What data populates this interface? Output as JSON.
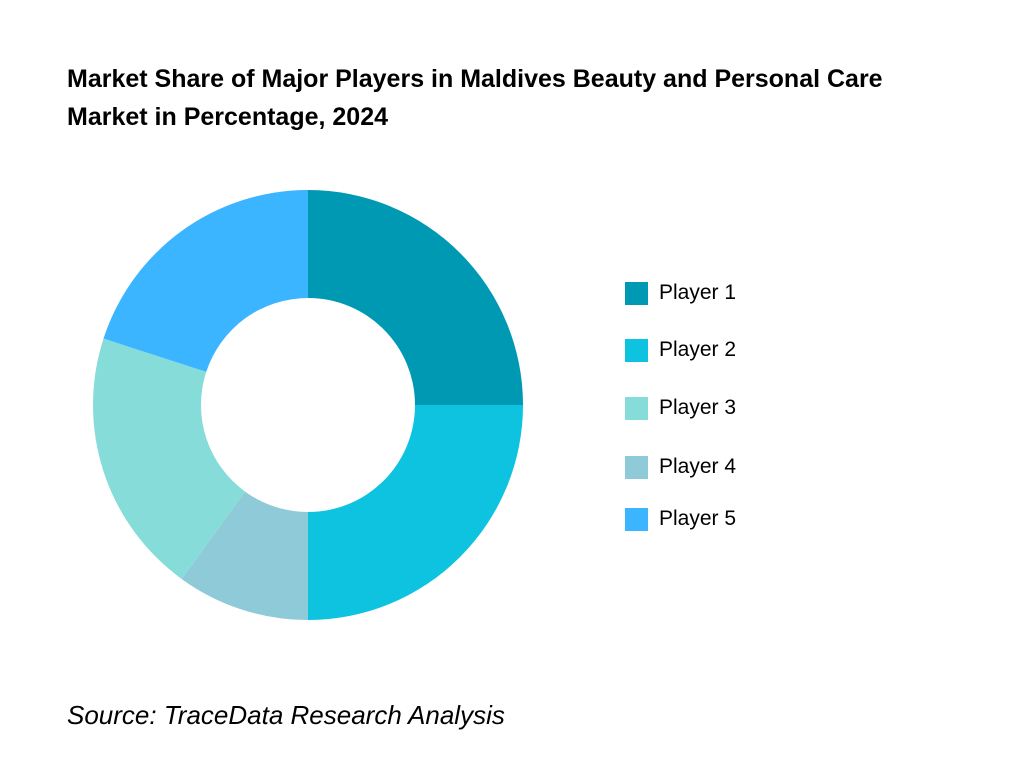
{
  "title": "Market Share of Major Players in Maldives Beauty and Personal Care Market in Percentage, 2024",
  "source": "Source: TraceData Research Analysis",
  "chart_data": {
    "type": "pie",
    "subtype": "donut",
    "title": "Market Share of Major Players in Maldives Beauty and Personal Care Market in Percentage, 2024",
    "legend_position": "right",
    "categories": [
      "Player 1",
      "Player 2",
      "Player 3",
      "Player 4",
      "Player 5"
    ],
    "values": [
      25,
      25,
      20,
      10,
      20
    ],
    "colors": [
      "#0099B4",
      "#0DC3E0",
      "#86DCD9",
      "#8ECAD8",
      "#3BB5FF"
    ],
    "slice_order_clockwise_from_top": [
      "Player 1",
      "Player 2",
      "Player 4",
      "Player 3",
      "Player 5"
    ]
  }
}
